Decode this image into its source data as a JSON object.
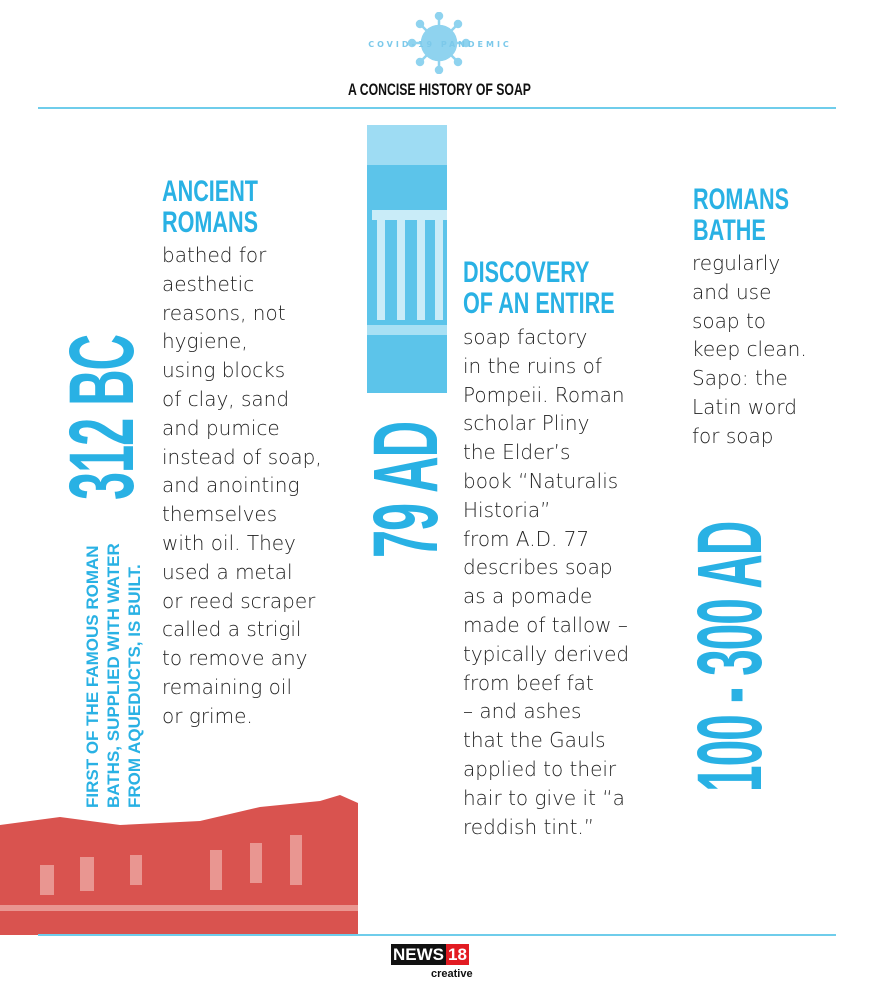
{
  "header": {
    "badge": "COVID-19 PANDEMIC",
    "title": "A CONCISE HISTORY OF SOAP",
    "icon": "virus-icon"
  },
  "colors": {
    "accent": "#29b1e4",
    "ruin": "#d9534f"
  },
  "entries": [
    {
      "year": "312 BC",
      "note": [
        "FIRST OF THE FAMOUS ROMAN",
        "BATHS, SUPPLIED WITH WATER",
        "FROM AQUEDUCTS, IS BUILT."
      ],
      "heading": [
        "ANCIENT",
        "ROMANS"
      ],
      "body": [
        "bathed for",
        "aesthetic",
        "reasons, not",
        "hygiene,",
        "using blocks",
        "of clay, sand",
        "and pumice",
        "instead of soap,",
        "and anointing",
        "themselves",
        "with oil. They",
        "used a metal",
        "or reed scraper",
        "called a strigil",
        "to remove any",
        "remaining oil",
        "or grime."
      ]
    },
    {
      "year": "79 AD",
      "heading": [
        "DISCOVERY",
        "OF AN ENTIRE"
      ],
      "body": [
        "soap factory",
        "in the ruins of",
        "Pompeii. Roman",
        "scholar Pliny",
        "the Elder’s",
        "book “Naturalis",
        "Historia”",
        "from A.D. 77",
        "describes soap",
        "as a pomade",
        "made of tallow –",
        "typically derived",
        "from beef fat",
        "– and ashes",
        "that the Gauls",
        "applied to their",
        "hair to give it “a",
        "reddish tint.”"
      ]
    },
    {
      "year": "100 - 300 AD",
      "heading": [
        "ROMANS",
        "BATHE"
      ],
      "body": [
        "regularly",
        "and use",
        "soap to",
        "keep clean.",
        "Sapo: the",
        "Latin word",
        "for soap"
      ]
    }
  ],
  "footer": {
    "logo_main": "NEWS",
    "logo_num": "18",
    "logo_sub": "creative"
  }
}
